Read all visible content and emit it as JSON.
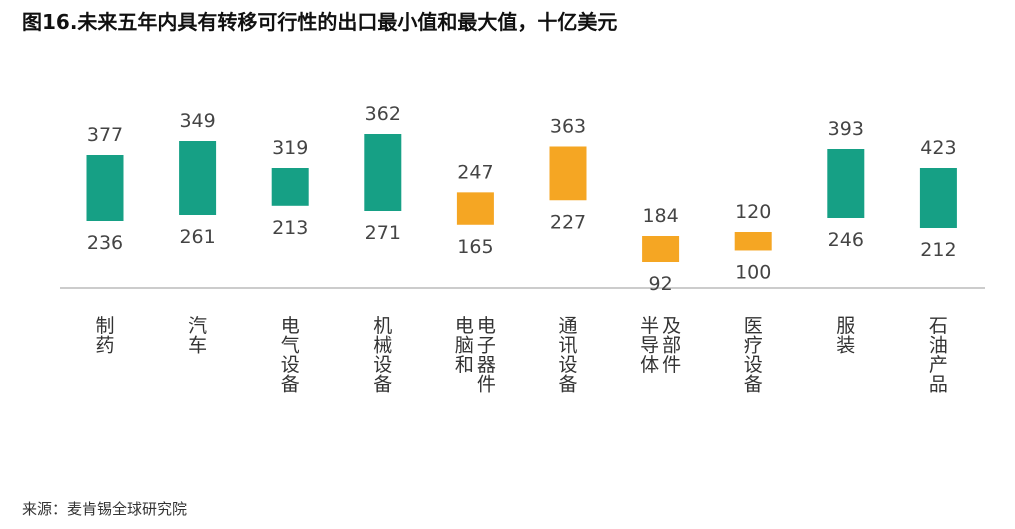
{
  "title": "图16.未来五年内具有转移可行性的出口最小值和最大值，十亿美元",
  "source": "来源：麦肯锡全球研究院",
  "colors": {
    "teal": "#16a085",
    "orange": "#f5a623",
    "axis": "#cccccc"
  },
  "chart_data": {
    "type": "bar",
    "subtype": "floating-range",
    "title": "图16.未来五年内具有转移可行性的出口最小值和最大值，十亿美元",
    "categories": [
      "制药",
      "汽车",
      "电气设备",
      "机械设备",
      "电脑和电子器件",
      "通讯设备",
      "半导体及部件",
      "医疗设备",
      "服装",
      "石油产品"
    ],
    "category_lines": [
      [
        [
          "制",
          "药"
        ]
      ],
      [
        [
          "汽",
          "车"
        ]
      ],
      [
        [
          "电",
          "气",
          "设",
          "备"
        ]
      ],
      [
        [
          "机",
          "械",
          "设",
          "备"
        ]
      ],
      [
        [
          "电",
          "脑",
          "和"
        ],
        [
          "电",
          "子",
          "器",
          "件"
        ]
      ],
      [
        [
          "通",
          "讯",
          "设",
          "备"
        ]
      ],
      [
        [
          "半",
          "导",
          "体"
        ],
        [
          "及",
          "部",
          "件"
        ]
      ],
      [
        [
          "医",
          "疗",
          "设",
          "备"
        ]
      ],
      [
        [
          "服",
          "装"
        ]
      ],
      [
        [
          "石",
          "油",
          "产",
          "品"
        ]
      ]
    ],
    "min": [
      236,
      261,
      213,
      271,
      165,
      227,
      92,
      100,
      246,
      212
    ],
    "max": [
      377,
      349,
      319,
      362,
      247,
      363,
      184,
      120,
      393,
      423
    ],
    "color_keys": [
      "teal",
      "teal",
      "teal",
      "teal",
      "orange",
      "orange",
      "orange",
      "orange",
      "teal",
      "teal"
    ]
  }
}
